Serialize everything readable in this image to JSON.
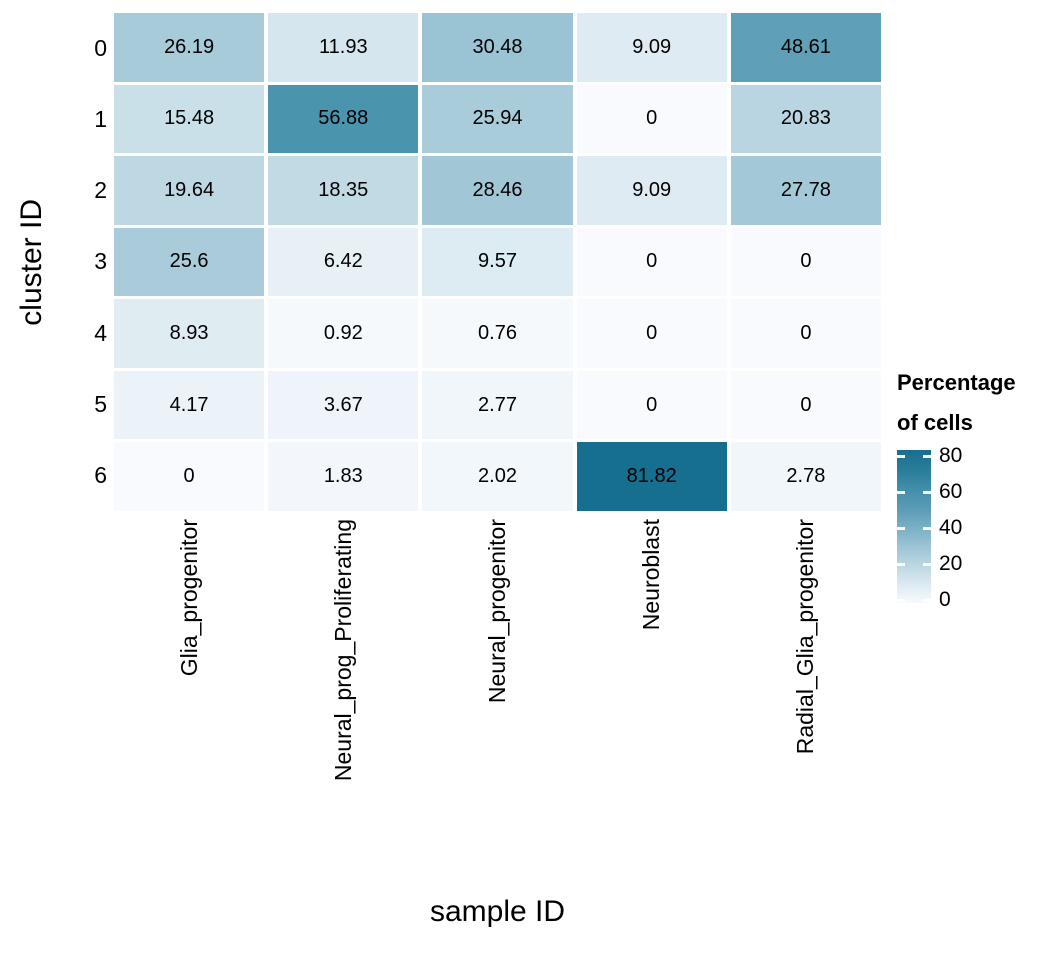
{
  "chart_data": {
    "type": "heatmap",
    "title": "",
    "xlabel": "sample ID",
    "ylabel": "cluster ID",
    "x_categories": [
      "Glia_progenitor",
      "Neural_prog_Proliferating",
      "Neural_progenitor",
      "Neuroblast",
      "Radial_Glia_progenitor"
    ],
    "y_categories": [
      "0",
      "1",
      "2",
      "3",
      "4",
      "5",
      "6"
    ],
    "rows": [
      [
        26.19,
        11.93,
        30.48,
        9.09,
        48.61
      ],
      [
        15.48,
        56.88,
        25.94,
        0,
        20.83
      ],
      [
        19.64,
        18.35,
        28.46,
        9.09,
        27.78
      ],
      [
        25.6,
        6.42,
        9.57,
        0,
        0
      ],
      [
        8.93,
        0.92,
        0.76,
        0,
        0
      ],
      [
        4.17,
        3.67,
        2.77,
        0,
        0
      ],
      [
        0,
        1.83,
        2.02,
        81.82,
        2.78
      ]
    ],
    "value_domain": [
      0,
      81.82
    ],
    "colorscale_stops": [
      [
        0,
        "#F8FAFD"
      ],
      [
        10,
        "#DCEAF1"
      ],
      [
        20,
        "#BCD7E2"
      ],
      [
        30,
        "#9CC4D4"
      ],
      [
        40,
        "#7BB0C5"
      ],
      [
        50,
        "#5C9CB6"
      ],
      [
        60,
        "#4390AB"
      ],
      [
        70,
        "#2C7F9C"
      ],
      [
        81.82,
        "#166F8F"
      ]
    ],
    "legend": {
      "title_line1": "Percentage",
      "title_line2": "of cells",
      "tick_labels": [
        "80",
        "60",
        "40",
        "20",
        "0"
      ],
      "tick_values": [
        80,
        60,
        40,
        20,
        0
      ]
    },
    "layout": {
      "grid_on": false,
      "legend_position": "right",
      "cell_text_color": "#000000"
    }
  }
}
